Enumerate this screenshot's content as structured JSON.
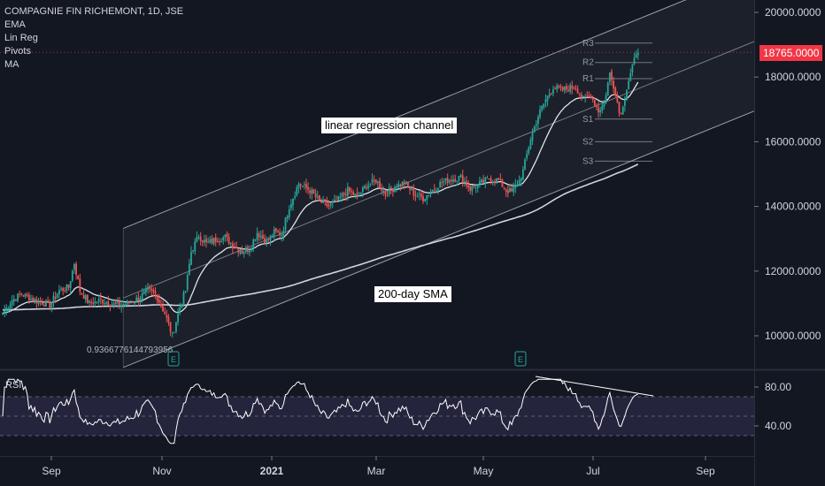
{
  "header": {
    "title": "COMPAGNIE FIN RICHEMONT, 1D, JSE",
    "indicators": [
      "EMA",
      "Lin Reg",
      "Pivots",
      "MA"
    ]
  },
  "annotations": {
    "channel": "linear regression channel",
    "sma": "200-day SMA",
    "coef": "0.9366776144793956"
  },
  "last_price": "18765.0000",
  "rsi_label": "RSI",
  "colors": {
    "up": "#26a69a",
    "down": "#ef5350",
    "bg": "#131722",
    "rsi_band": "#2a2845",
    "price_tag": "#f23645"
  },
  "chart_data": {
    "type": "candlestick",
    "price_axis": {
      "ticks": [
        "20000.0000",
        "18000.0000",
        "16000.0000",
        "14000.0000",
        "12000.0000",
        "10000.0000"
      ],
      "range": [
        9300,
        20400
      ]
    },
    "rsi_axis": {
      "ticks": [
        "80.00",
        "40.00"
      ],
      "range": [
        20,
        90
      ],
      "band": [
        30,
        70
      ]
    },
    "time_axis": [
      "Sep",
      "Nov",
      "2021",
      "Mar",
      "May",
      "Jul",
      "Sep"
    ],
    "pivots": [
      "R3",
      "R2",
      "R1",
      "S1",
      "S2",
      "S3"
    ],
    "pivot_values": [
      19050,
      18450,
      17950,
      16700,
      16000,
      15400
    ],
    "last_price": 18765,
    "close_anchors": [
      [
        0,
        10700
      ],
      [
        5,
        11100
      ],
      [
        10,
        11300
      ],
      [
        15,
        11150
      ],
      [
        20,
        11050
      ],
      [
        25,
        10950
      ],
      [
        30,
        11400
      ],
      [
        35,
        11500
      ],
      [
        38,
        12250
      ],
      [
        41,
        11400
      ],
      [
        46,
        11000
      ],
      [
        52,
        11100
      ],
      [
        60,
        10950
      ],
      [
        66,
        11000
      ],
      [
        72,
        11150
      ],
      [
        77,
        11400
      ],
      [
        81,
        11300
      ],
      [
        86,
        10700
      ],
      [
        90,
        10000
      ],
      [
        94,
        10900
      ],
      [
        97,
        11400
      ],
      [
        100,
        12600
      ],
      [
        104,
        13100
      ],
      [
        108,
        12850
      ],
      [
        114,
        13000
      ],
      [
        118,
        13050
      ],
      [
        122,
        12800
      ],
      [
        127,
        12600
      ],
      [
        131,
        12700
      ],
      [
        135,
        13200
      ],
      [
        140,
        12900
      ],
      [
        144,
        13200
      ],
      [
        148,
        13150
      ],
      [
        152,
        14000
      ],
      [
        157,
        14700
      ],
      [
        163,
        14500
      ],
      [
        168,
        14150
      ],
      [
        173,
        14000
      ],
      [
        178,
        14200
      ],
      [
        183,
        14500
      ],
      [
        188,
        14300
      ],
      [
        193,
        14650
      ],
      [
        198,
        14800
      ],
      [
        203,
        14400
      ],
      [
        208,
        14600
      ],
      [
        213,
        14750
      ],
      [
        218,
        14400
      ],
      [
        223,
        14250
      ],
      [
        228,
        14500
      ],
      [
        233,
        14750
      ],
      [
        238,
        14850
      ],
      [
        243,
        14900
      ],
      [
        248,
        14550
      ],
      [
        253,
        14700
      ],
      [
        258,
        14850
      ],
      [
        263,
        14800
      ],
      [
        267,
        14500
      ],
      [
        270,
        14450
      ],
      [
        274,
        14800
      ],
      [
        276,
        15100
      ],
      [
        280,
        16100
      ],
      [
        284,
        16800
      ],
      [
        288,
        17300
      ],
      [
        292,
        17700
      ],
      [
        296,
        17600
      ],
      [
        300,
        17650
      ],
      [
        304,
        17700
      ],
      [
        308,
        17300
      ],
      [
        312,
        17450
      ],
      [
        316,
        16950
      ],
      [
        319,
        17200
      ],
      [
        322,
        18100
      ],
      [
        325,
        17550
      ],
      [
        327,
        16900
      ],
      [
        329,
        17050
      ],
      [
        331,
        17700
      ],
      [
        334,
        18350
      ],
      [
        337,
        18765
      ]
    ]
  }
}
